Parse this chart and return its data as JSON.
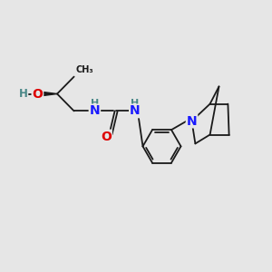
{
  "bg_color": "#e6e6e6",
  "bond_color": "#1a1a1a",
  "N_color": "#1a1aff",
  "O_color": "#dd0000",
  "H_color": "#4a8888",
  "lw": 1.3,
  "xlim": [
    0,
    10
  ],
  "ylim": [
    0,
    10
  ]
}
